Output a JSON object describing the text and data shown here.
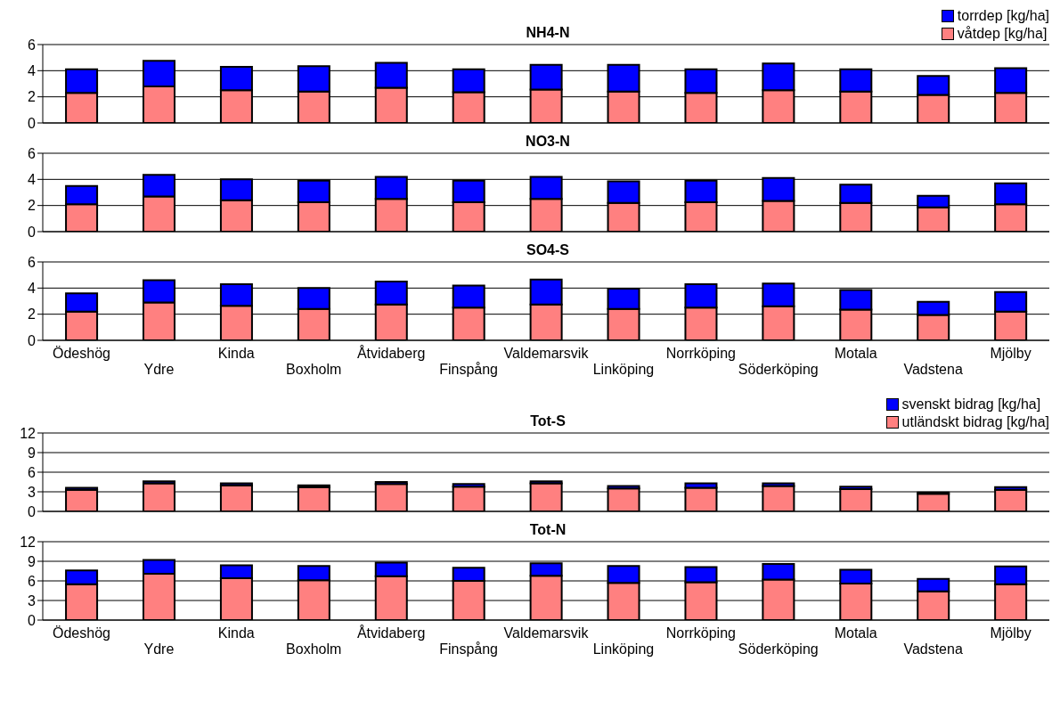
{
  "chart_data": [
    {
      "type": "bar",
      "title": "NH4-N",
      "stacked": true,
      "categories": [
        null,
        null,
        null,
        null,
        null,
        null,
        null,
        null,
        null,
        null,
        null,
        null,
        null
      ],
      "ylim": [
        0,
        6
      ],
      "yticks": [
        0,
        2,
        4,
        6
      ],
      "grid": "y",
      "legend": "top right",
      "tick_labels": "y",
      "series": [
        {
          "name": "våtdep [kg/ha]",
          "color": "#ff8080",
          "values": [
            2.3,
            2.8,
            2.5,
            2.4,
            2.7,
            2.35,
            2.55,
            2.4,
            2.3,
            2.5,
            2.4,
            2.15,
            2.3
          ]
        },
        {
          "name": "torrdep [kg/ha]",
          "color": "#0000ff",
          "values": [
            1.8,
            1.95,
            1.8,
            1.95,
            1.9,
            1.75,
            1.9,
            2.05,
            1.8,
            2.05,
            1.7,
            1.45,
            1.9
          ]
        }
      ]
    },
    {
      "type": "bar",
      "title": "NO3-N",
      "stacked": true,
      "categories": [
        null,
        null,
        null,
        null,
        null,
        null,
        null,
        null,
        null,
        null,
        null,
        null,
        null
      ],
      "ylim": [
        0,
        6
      ],
      "yticks": [
        0,
        2,
        4,
        6
      ],
      "grid": "y",
      "tick_labels": "y",
      "series": [
        {
          "color": "#ff8080",
          "values": [
            2.1,
            2.7,
            2.4,
            2.25,
            2.5,
            2.25,
            2.5,
            2.2,
            2.25,
            2.35,
            2.2,
            1.85,
            2.1
          ]
        },
        {
          "color": "#0000ff",
          "values": [
            1.4,
            1.65,
            1.6,
            1.65,
            1.7,
            1.65,
            1.7,
            1.65,
            1.65,
            1.75,
            1.4,
            0.9,
            1.6
          ]
        }
      ]
    },
    {
      "type": "bar",
      "title": "SO4-S",
      "stacked": true,
      "categories": [
        "Ödeshög",
        "Ydre",
        "Kinda",
        "Boxholm",
        "Åtvidaberg",
        "Finspång",
        "Valdemarsvik",
        "Linköping",
        "Norrköping",
        "Söderköping",
        "Motala",
        "Vadstena",
        "Mjölby"
      ],
      "ylim": [
        0,
        6
      ],
      "yticks": [
        0,
        2,
        4,
        6
      ],
      "grid": "y",
      "series": [
        {
          "color": "#ff8080",
          "values": [
            2.2,
            2.9,
            2.65,
            2.4,
            2.75,
            2.5,
            2.75,
            2.4,
            2.5,
            2.6,
            2.35,
            1.95,
            2.2
          ]
        },
        {
          "color": "#0000ff",
          "values": [
            1.4,
            1.7,
            1.65,
            1.6,
            1.75,
            1.7,
            1.9,
            1.55,
            1.8,
            1.75,
            1.5,
            1.0,
            1.5
          ]
        }
      ]
    },
    {
      "type": "bar",
      "title": "Tot-S",
      "stacked": true,
      "categories": [
        null,
        null,
        null,
        null,
        null,
        null,
        null,
        null,
        null,
        null,
        null,
        null,
        null
      ],
      "ylim": [
        0,
        12
      ],
      "yticks": [
        0,
        3,
        6,
        9,
        12
      ],
      "grid": "y",
      "legend": "top right",
      "tick_labels": "y",
      "series": [
        {
          "name": "utländskt bidrag [kg/ha]",
          "color": "#ff8080",
          "values": [
            3.3,
            4.3,
            4.0,
            3.7,
            4.2,
            3.8,
            4.3,
            3.5,
            3.6,
            3.9,
            3.4,
            2.7,
            3.3
          ]
        },
        {
          "name": "svenskt bidrag [kg/ha]",
          "color": "#0000ff",
          "values": [
            0.3,
            0.3,
            0.3,
            0.3,
            0.3,
            0.4,
            0.3,
            0.4,
            0.7,
            0.4,
            0.4,
            0.2,
            0.4
          ]
        }
      ]
    },
    {
      "type": "bar",
      "title": "Tot-N",
      "stacked": true,
      "categories": [
        "Ödeshög",
        "Ydre",
        "Kinda",
        "Boxholm",
        "Åtvidaberg",
        "Finspång",
        "Valdemarsvik",
        "Linköping",
        "Norrköping",
        "Söderköping",
        "Motala",
        "Vadstena",
        "Mjölby"
      ],
      "ylim": [
        0,
        12
      ],
      "yticks": [
        0,
        3,
        6,
        9,
        12
      ],
      "grid": "y",
      "series": [
        {
          "color": "#ff8080",
          "values": [
            5.5,
            7.1,
            6.4,
            6.1,
            6.7,
            6.0,
            6.8,
            5.7,
            5.8,
            6.2,
            5.6,
            4.4,
            5.5
          ]
        },
        {
          "color": "#0000ff",
          "values": [
            2.1,
            2.1,
            2.0,
            2.2,
            2.1,
            2.0,
            1.9,
            2.6,
            2.3,
            2.4,
            2.1,
            1.9,
            2.7
          ]
        }
      ]
    }
  ]
}
